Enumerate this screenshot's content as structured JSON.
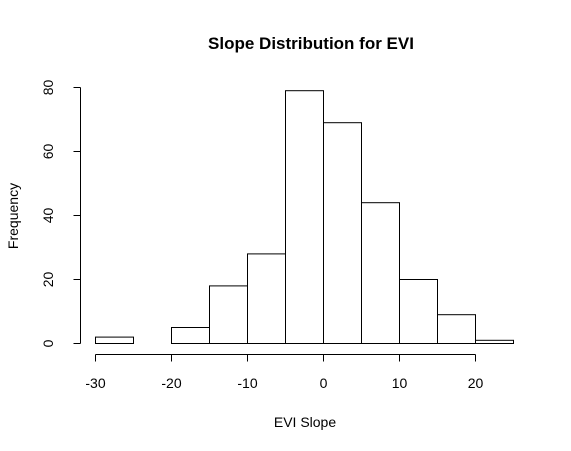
{
  "chart_data": {
    "type": "bar",
    "title": "Slope Distribution for EVI",
    "xlabel": "EVI Slope",
    "ylabel": "Frequency",
    "bins": [
      {
        "x0": -30,
        "x1": -25,
        "count": 2
      },
      {
        "x0": -25,
        "x1": -20,
        "count": 0
      },
      {
        "x0": -20,
        "x1": -15,
        "count": 5
      },
      {
        "x0": -15,
        "x1": -10,
        "count": 18
      },
      {
        "x0": -10,
        "x1": -5,
        "count": 28
      },
      {
        "x0": -5,
        "x1": 0,
        "count": 79
      },
      {
        "x0": 0,
        "x1": 5,
        "count": 69
      },
      {
        "x0": 5,
        "x1": 10,
        "count": 44
      },
      {
        "x0": 10,
        "x1": 15,
        "count": 20
      },
      {
        "x0": 15,
        "x1": 20,
        "count": 9
      },
      {
        "x0": 20,
        "x1": 25,
        "count": 1
      }
    ],
    "xticks": [
      -30,
      -20,
      -10,
      0,
      10,
      20
    ],
    "yticks": [
      0,
      20,
      40,
      60,
      80
    ],
    "xlim": [
      -30,
      25
    ],
    "ylim": [
      0,
      80
    ],
    "grid": false
  }
}
